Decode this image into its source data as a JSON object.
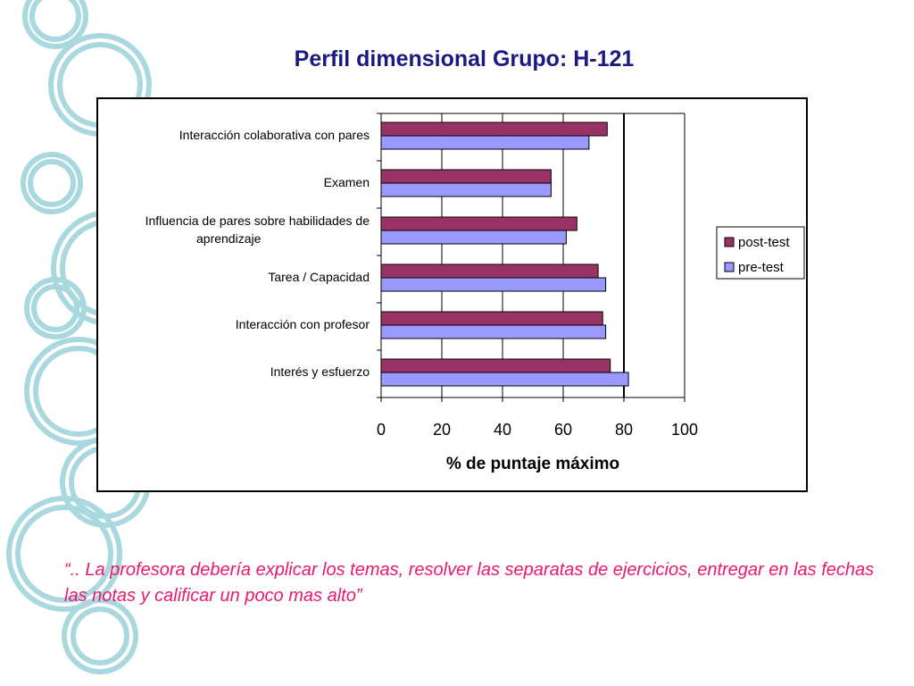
{
  "slide": {
    "title": "Perfil dimensional Grupo: H-121",
    "quote": "“.. La profesora debería explicar los temas, resolver las separatas de ejercicios, entregar en las fechas las notas y calificar un poco mas alto”"
  },
  "chart_data": {
    "type": "bar",
    "orientation": "horizontal",
    "title": "",
    "xlabel": "% de puntaje máximo",
    "ylabel": "",
    "xlim": [
      0,
      100
    ],
    "x_ticks": [
      0,
      20,
      40,
      60,
      80,
      100
    ],
    "reference_line": 80,
    "grid": true,
    "legend_position": "right",
    "categories": [
      "Interacción colaborativa con pares",
      "Examen",
      "Influencia de pares sobre habilidades de aprendizaje",
      "Tarea / Capacidad",
      "Interacción con profesor",
      "Interés y esfuerzo"
    ],
    "category_lines": [
      [
        "Interacción colaborativa con pares"
      ],
      [
        "Examen"
      ],
      [
        "Influencia de pares sobre habilidades de",
        "aprendizaje"
      ],
      [
        "Tarea / Capacidad"
      ],
      [
        "Interacción con profesor"
      ],
      [
        "Interés y esfuerzo"
      ]
    ],
    "series": [
      {
        "name": "post-test",
        "color": "#993366",
        "values": [
          74.5,
          56,
          64.5,
          71.5,
          73,
          75.5
        ]
      },
      {
        "name": "pre-test",
        "color": "#9999ff",
        "values": [
          68.5,
          56,
          61,
          74,
          74,
          81.5
        ]
      }
    ]
  },
  "colors": {
    "title": "#1a1a80",
    "quote": "#e8196e",
    "decoration": "#a9d8df"
  }
}
